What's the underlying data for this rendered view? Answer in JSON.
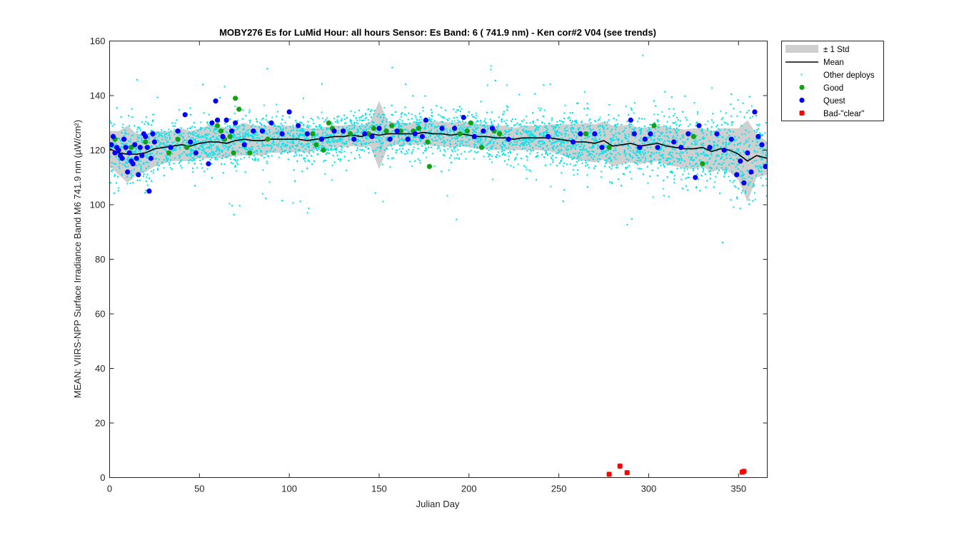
{
  "chart_data": {
    "type": "scatter",
    "title": "MOBY276   Es for LuMid  Hour: all hours  Sensor: Es Band: 6 ( 741.9 nm)  - Ken cor#2 V04 (see trends)",
    "xlabel": "Julian Day",
    "ylabel": "MEAN: VIIRS-NPP Surface Irradiance Band M6 741.9 nm (µW/cm²)",
    "xlim": [
      0,
      366
    ],
    "ylim": [
      0,
      160
    ],
    "x_ticks": [
      "0",
      "50",
      "100",
      "150",
      "200",
      "250",
      "300",
      "350"
    ],
    "y_ticks": [
      "0",
      "20",
      "40",
      "60",
      "80",
      "100",
      "120",
      "140",
      "160"
    ],
    "grid": false,
    "legend_position": "outside-top-right",
    "colors": {
      "band": "#cfcfcf",
      "mean": "#000000",
      "other": "#00e5ee",
      "good": "#12a112",
      "quest": "#0000ff",
      "bad": "#ff0000"
    },
    "legend": [
      {
        "label": "± 1 Std",
        "kind": "band"
      },
      {
        "label": "Mean",
        "kind": "line"
      },
      {
        "label": "Other deploys",
        "kind": "other"
      },
      {
        "label": "Good",
        "kind": "good"
      },
      {
        "label": "Quest",
        "kind": "quest"
      },
      {
        "label": "Bad-\"clear\"",
        "kind": "bad"
      }
    ],
    "series": [
      {
        "name": "Mean",
        "x": [
          0,
          5,
          10,
          15,
          20,
          25,
          30,
          35,
          40,
          45,
          50,
          55,
          60,
          65,
          70,
          75,
          80,
          85,
          90,
          95,
          100,
          105,
          110,
          115,
          120,
          125,
          130,
          135,
          140,
          145,
          150,
          155,
          160,
          165,
          170,
          175,
          180,
          185,
          190,
          195,
          200,
          205,
          210,
          215,
          220,
          225,
          230,
          235,
          240,
          245,
          250,
          255,
          260,
          265,
          270,
          275,
          280,
          285,
          290,
          295,
          300,
          305,
          310,
          315,
          320,
          325,
          330,
          335,
          340,
          345,
          350,
          355,
          360,
          366
        ],
        "y": [
          120.5,
          119,
          118.5,
          118.5,
          119,
          120.5,
          121,
          121.5,
          122,
          121.5,
          122.5,
          123,
          123,
          122.5,
          123.5,
          124,
          123.5,
          123.5,
          124,
          124,
          124,
          124,
          123.5,
          124,
          124.5,
          125,
          125,
          125.5,
          125,
          126,
          125.5,
          126,
          126,
          126,
          126,
          126.5,
          126,
          126,
          125.5,
          126,
          125.5,
          125,
          125,
          124.5,
          124.5,
          124,
          124.5,
          124.5,
          124.5,
          124.5,
          124,
          123.5,
          123,
          123,
          122.5,
          123.5,
          121.5,
          122,
          122.5,
          121.5,
          122,
          122.5,
          121.5,
          121,
          120.5,
          120.5,
          121,
          119.5,
          120.5,
          120,
          118.5,
          116,
          118,
          117
        ]
      },
      {
        "name": "± 1 Std",
        "x": [
          0,
          5,
          10,
          15,
          20,
          25,
          30,
          35,
          40,
          45,
          50,
          55,
          60,
          65,
          70,
          75,
          80,
          85,
          90,
          95,
          100,
          105,
          110,
          115,
          120,
          125,
          130,
          135,
          140,
          145,
          150,
          155,
          160,
          165,
          170,
          175,
          180,
          185,
          190,
          195,
          200,
          205,
          210,
          215,
          220,
          225,
          230,
          235,
          240,
          245,
          250,
          255,
          260,
          265,
          270,
          275,
          280,
          285,
          290,
          295,
          300,
          305,
          310,
          315,
          320,
          325,
          330,
          335,
          340,
          345,
          350,
          355,
          360,
          366
        ],
        "lower": [
          114,
          111,
          108,
          111,
          112,
          114,
          115,
          116,
          116,
          116,
          117,
          117,
          117,
          117,
          118,
          118,
          118,
          118,
          119,
          119,
          119,
          119.5,
          119,
          120,
          120.5,
          121,
          121,
          121.5,
          121,
          121.5,
          113,
          121.5,
          122,
          122,
          122,
          122,
          121.5,
          121.5,
          121,
          121.5,
          121,
          120.5,
          120.5,
          120,
          120,
          120,
          120,
          120,
          120,
          119.5,
          118.5,
          117.5,
          116.5,
          116,
          115.5,
          116.5,
          114,
          115,
          115.5,
          115,
          115.5,
          116,
          114.5,
          114,
          113.5,
          113,
          114,
          112,
          113,
          112,
          109,
          101,
          110,
          111
        ]
      },
      {
        "name": "Good",
        "x": [
          3,
          12,
          20,
          33,
          38,
          43,
          60,
          62,
          64,
          67,
          69,
          70,
          72,
          78,
          88,
          113,
          115,
          119,
          122,
          124,
          134,
          144,
          147,
          154,
          157,
          162,
          169,
          172,
          177,
          178,
          195,
          199,
          201,
          207,
          214,
          217,
          265,
          278,
          303,
          325,
          330
        ],
        "y": [
          124,
          121,
          123,
          119,
          124,
          121,
          129,
          127,
          124,
          125,
          119,
          139,
          135,
          119,
          124,
          126,
          122,
          120,
          130,
          128,
          126,
          126,
          128,
          127,
          129,
          127,
          127,
          128,
          123,
          114,
          126,
          127,
          130,
          121,
          127,
          126,
          126,
          121,
          129,
          125,
          115
        ]
      },
      {
        "name": "Quest",
        "x": [
          1,
          2,
          3,
          4,
          5,
          6,
          7,
          8,
          9,
          10,
          11,
          12,
          13,
          14,
          15,
          16,
          17,
          18,
          19,
          20,
          21,
          22,
          23,
          24,
          25,
          34,
          38,
          42,
          45,
          48,
          55,
          57,
          59,
          60,
          63,
          65,
          68,
          70,
          75,
          80,
          85,
          90,
          96,
          100,
          105,
          110,
          118,
          125,
          130,
          136,
          142,
          146,
          150,
          156,
          160,
          166,
          170,
          174,
          176,
          185,
          192,
          197,
          203,
          208,
          213,
          222,
          244,
          258,
          262,
          270,
          274,
          290,
          292,
          295,
          298,
          301,
          305,
          314,
          318,
          322,
          326,
          328,
          334,
          338,
          342,
          346,
          349,
          351,
          353,
          355,
          357,
          359,
          361,
          363,
          365
        ],
        "y": [
          122,
          125,
          119,
          121,
          120,
          118,
          117,
          124,
          121,
          112,
          119,
          116,
          115,
          122,
          117,
          111,
          121,
          118,
          126,
          125,
          121,
          105,
          117,
          126,
          123,
          121,
          127,
          133,
          123,
          119,
          115,
          130,
          138,
          131,
          125,
          131,
          127,
          130,
          122,
          127,
          127,
          130,
          126,
          134,
          129,
          126,
          124,
          127,
          127,
          124,
          126,
          125,
          128,
          124,
          127,
          124,
          126,
          125,
          131,
          128,
          128,
          132,
          125,
          127,
          128,
          124,
          125,
          123,
          126,
          126,
          121,
          131,
          126,
          121,
          124,
          126,
          121,
          123,
          121,
          126,
          110,
          129,
          121,
          126,
          120,
          124,
          111,
          116,
          108,
          119,
          112,
          134,
          125,
          122,
          114
        ]
      },
      {
        "name": "Bad-\"clear\"",
        "x": [
          278,
          284,
          288,
          352,
          353
        ],
        "y": [
          1.2,
          4.2,
          1.8,
          2.0,
          2.3
        ]
      }
    ]
  }
}
